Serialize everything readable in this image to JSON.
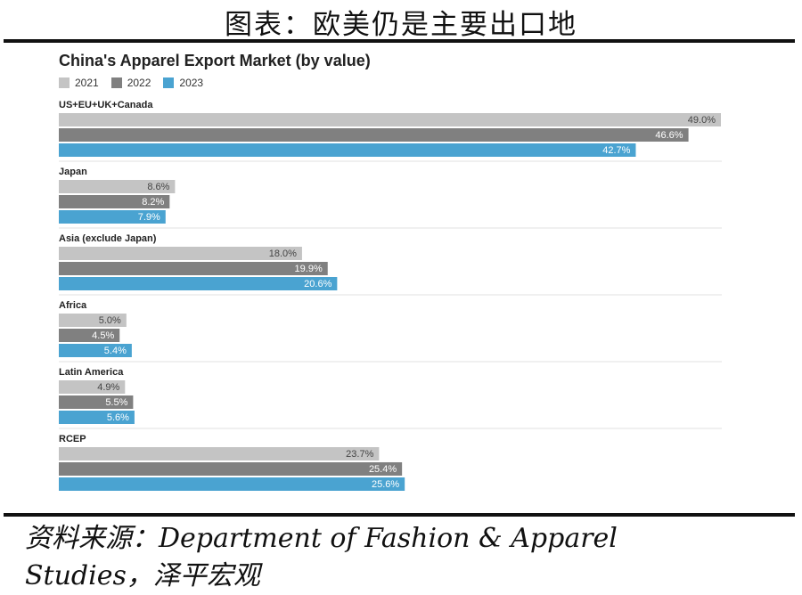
{
  "figure_title": "图表：欧美仍是主要出口地",
  "source_line1": "资料来源：Department of Fashion & Apparel",
  "source_line2": "Studies，泽平宏观",
  "chart_data": {
    "type": "bar",
    "orientation": "horizontal",
    "title": "China's Apparel Export Market (by value)",
    "categories": [
      "US+EU+UK+Canada",
      "Japan",
      "Asia (exclude Japan)",
      "Africa",
      "Latin America",
      "RCEP"
    ],
    "series": [
      {
        "name": "2021",
        "color": "#c4c4c4",
        "values": [
          49.0,
          8.6,
          18.0,
          5.0,
          4.9,
          23.7
        ]
      },
      {
        "name": "2022",
        "color": "#808080",
        "values": [
          46.6,
          8.2,
          19.9,
          4.5,
          5.5,
          25.4
        ]
      },
      {
        "name": "2023",
        "color": "#4aa3d1",
        "values": [
          42.7,
          7.9,
          20.6,
          5.4,
          5.6,
          25.6
        ]
      }
    ],
    "value_suffix": "%",
    "legend_position": "top-left",
    "grid": false
  }
}
